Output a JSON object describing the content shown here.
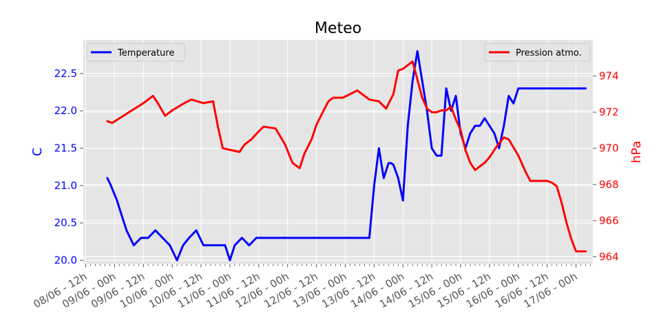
{
  "chart_data": {
    "type": "line",
    "title": "Meteo",
    "xlabel": "",
    "grid": true,
    "x_ticks": [
      "08/06 - 12h",
      "09/06 - 00h",
      "09/06 - 12h",
      "10/06 - 00h",
      "10/06 - 12h",
      "11/06 - 00h",
      "11/06 - 12h",
      "12/06 - 00h",
      "12/06 - 12h",
      "13/06 - 00h",
      "13/06 - 12h",
      "14/06 - 00h",
      "14/06 - 12h",
      "15/06 - 00h",
      "15/06 - 12h",
      "16/06 - 00h",
      "16/06 - 12h",
      "17/06 - 00h"
    ],
    "x_ticks_hours": [
      0,
      12,
      24,
      36,
      48,
      60,
      72,
      84,
      96,
      108,
      120,
      132,
      144,
      156,
      168,
      180,
      192,
      204
    ],
    "xlim_hours": [
      -1,
      211
    ],
    "left_axis": {
      "label": "C",
      "color": "#0000ff",
      "ylim": [
        19.95,
        22.95
      ],
      "ticks": [
        "20.0",
        "20.5",
        "21.0",
        "21.5",
        "22.0",
        "22.5"
      ]
    },
    "right_axis": {
      "label": "hPa",
      "color": "#ff0000",
      "ylim": [
        963.6,
        976.0
      ],
      "ticks": [
        "964",
        "966",
        "968",
        "970",
        "972",
        "974"
      ]
    },
    "series": [
      {
        "name": "Temperature",
        "axis": "left",
        "color": "#0000ff",
        "x_hours": [
          9,
          10.5,
          13,
          15,
          17,
          20,
          23,
          26,
          29,
          32,
          35,
          38,
          40.5,
          43,
          46,
          49,
          52,
          55,
          58,
          60,
          62,
          65,
          68,
          71,
          74,
          76,
          78,
          80,
          82,
          84,
          86,
          88,
          90,
          92,
          94,
          96,
          98,
          100,
          102,
          104,
          106,
          108,
          110,
          112,
          114,
          116,
          118,
          120,
          122,
          124,
          126,
          127,
          128,
          130,
          132,
          134,
          136,
          138,
          140,
          142,
          144,
          146,
          148,
          150,
          152,
          154,
          156,
          158,
          159,
          160,
          162,
          164,
          166,
          168,
          170,
          172,
          174,
          176,
          178,
          180,
          182,
          184,
          186,
          188,
          190,
          192,
          194,
          196,
          198,
          200,
          202,
          204,
          206,
          208
        ],
        "y": [
          21.1,
          21.0,
          20.8,
          20.6,
          20.4,
          20.2,
          20.3,
          20.3,
          20.4,
          20.3,
          20.2,
          20.0,
          20.2,
          20.3,
          20.4,
          20.2,
          20.2,
          20.2,
          20.2,
          20.0,
          20.2,
          20.3,
          20.2,
          20.3,
          20.3,
          20.3,
          20.3,
          20.3,
          20.3,
          20.3,
          20.3,
          20.3,
          20.3,
          20.3,
          20.3,
          20.3,
          20.3,
          20.3,
          20.3,
          20.3,
          20.3,
          20.3,
          20.3,
          20.3,
          20.3,
          20.3,
          20.3,
          21.0,
          21.5,
          21.1,
          21.3,
          21.3,
          21.28,
          21.1,
          20.8,
          21.8,
          22.4,
          22.8,
          22.4,
          22.0,
          21.5,
          21.4,
          21.4,
          22.3,
          22.0,
          22.2,
          21.7,
          21.5,
          21.6,
          21.7,
          21.8,
          21.8,
          21.9,
          21.8,
          21.7,
          21.5,
          21.8,
          22.2,
          22.1,
          22.3,
          22.3,
          22.3,
          22.3,
          22.3,
          22.3,
          22.3,
          22.3,
          22.3,
          22.3,
          22.3,
          22.3,
          22.3,
          22.3,
          22.3
        ]
      },
      {
        "name": "Pression atmo.",
        "axis": "right",
        "color": "#ff0000",
        "x_hours": [
          9,
          11,
          18,
          24,
          28,
          30,
          33,
          36,
          41,
          44,
          49,
          53,
          55,
          57,
          64,
          66,
          69,
          71,
          74,
          79,
          83,
          86,
          89,
          91,
          94,
          96,
          99,
          101,
          103,
          107,
          110,
          113,
          118,
          122,
          125,
          128,
          130,
          132,
          134,
          136,
          138,
          140,
          142,
          144,
          146,
          148,
          150,
          152,
          154,
          156,
          158,
          160,
          162,
          164,
          166,
          168,
          169,
          171,
          174,
          176,
          180,
          183,
          185,
          188,
          190,
          192,
          194,
          196,
          198,
          200,
          202,
          204,
          206,
          208
        ],
        "y": [
          971.5,
          971.4,
          972.0,
          972.5,
          972.9,
          972.5,
          971.8,
          972.1,
          972.5,
          972.7,
          972.5,
          972.6,
          971.2,
          970.0,
          969.8,
          970.2,
          970.5,
          970.8,
          971.2,
          971.1,
          970.2,
          969.2,
          968.9,
          969.7,
          970.5,
          971.3,
          972.1,
          972.6,
          972.8,
          972.8,
          973.0,
          973.2,
          972.7,
          972.6,
          972.2,
          973.0,
          974.3,
          974.4,
          974.6,
          974.8,
          973.8,
          972.8,
          972.2,
          972.0,
          972.0,
          972.1,
          972.1,
          972.3,
          971.6,
          971.0,
          969.9,
          969.2,
          968.8,
          969.0,
          969.2,
          969.5,
          969.7,
          970.1,
          970.6,
          970.5,
          969.6,
          968.7,
          968.2,
          968.2,
          968.2,
          968.2,
          968.1,
          967.9,
          967.0,
          965.9,
          965.0,
          964.3,
          964.3,
          964.3
        ]
      }
    ],
    "legends": [
      {
        "label": "Temperature",
        "placement": "upper left"
      },
      {
        "label": "Pression atmo.",
        "placement": "upper right"
      }
    ]
  }
}
